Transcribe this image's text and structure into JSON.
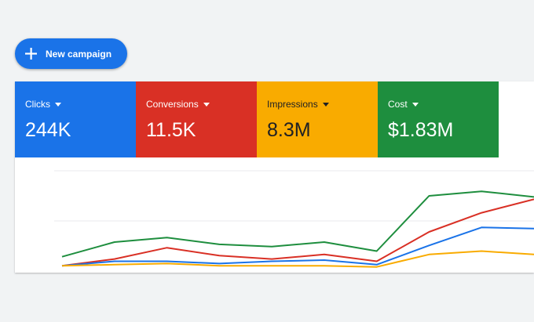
{
  "toolbar": {
    "new_campaign_label": "New campaign",
    "icon": "plus-icon"
  },
  "metrics": [
    {
      "label": "Clicks",
      "value": "244K",
      "color": "#1a73e8"
    },
    {
      "label": "Conversions",
      "value": "11.5K",
      "color": "#d93025"
    },
    {
      "label": "Impressions",
      "value": "8.3M",
      "color": "#f9ab00"
    },
    {
      "label": "Cost",
      "value": "$1.83M",
      "color": "#1e8e3e"
    }
  ],
  "chart_data": {
    "type": "line",
    "x": [
      0,
      1,
      2,
      3,
      4,
      5,
      6,
      7,
      8,
      9
    ],
    "series": [
      {
        "color": "#1e8e3e",
        "values": [
          12,
          25,
          29,
          23,
          21,
          25,
          17,
          66,
          70,
          65
        ]
      },
      {
        "color": "#d93025",
        "values": [
          4,
          10,
          20,
          13,
          10,
          14,
          8,
          34,
          51,
          63
        ]
      },
      {
        "color": "#1a73e8",
        "values": [
          4,
          8,
          8,
          6,
          8,
          9,
          5,
          22,
          38,
          37
        ]
      },
      {
        "color": "#f9ab00",
        "values": [
          4,
          5,
          6,
          4,
          4,
          4,
          3,
          14,
          17,
          14
        ]
      }
    ],
    "grid": true
  }
}
